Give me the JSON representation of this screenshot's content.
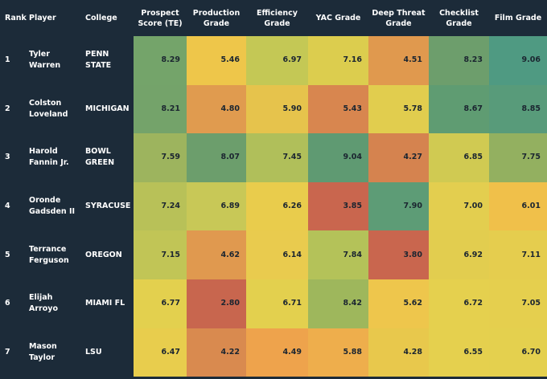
{
  "table": {
    "columns": [
      "Rank",
      "Player",
      "College",
      "Prospect Score (TE)",
      "Production Grade",
      "Efficiency Grade",
      "YAC Grade",
      "Deep Threat Grade",
      "Checklist Grade",
      "Film Grade"
    ],
    "rows": [
      {
        "rank": "1",
        "player": "Tyler Warren",
        "college": "PENN STATE",
        "grades": [
          "8.29",
          "5.46",
          "6.97",
          "7.16",
          "4.51",
          "8.23",
          "9.06"
        ],
        "colors": [
          "#74a46a",
          "#eec64a",
          "#c4c855",
          "#dccd4e",
          "#e0994e",
          "#6d9e6c",
          "#4f9a82"
        ]
      },
      {
        "rank": "2",
        "player": "Colston Loveland",
        "college": "MICHIGAN",
        "grades": [
          "8.21",
          "4.80",
          "5.90",
          "5.43",
          "5.78",
          "8.67",
          "8.85"
        ],
        "colors": [
          "#74a36a",
          "#e09b4f",
          "#e6c34c",
          "#d8864f",
          "#e1cd4e",
          "#5f9c72",
          "#589b7a"
        ]
      },
      {
        "rank": "3",
        "player": "Harold Fannin Jr.",
        "college": "BOWL GREEN",
        "grades": [
          "7.59",
          "8.07",
          "7.45",
          "9.04",
          "4.27",
          "6.85",
          "7.75"
        ],
        "colors": [
          "#9db45e",
          "#6c9e6c",
          "#b0bf5a",
          "#5f9a72",
          "#d5834f",
          "#d0ca52",
          "#93b060"
        ]
      },
      {
        "rank": "4",
        "player": "Oronde Gadsden II",
        "college": "SYRACUSE",
        "grades": [
          "7.24",
          "6.89",
          "6.26",
          "3.85",
          "7.90",
          "7.00",
          "6.01"
        ],
        "colors": [
          "#b8c158",
          "#c8c857",
          "#e9cc4c",
          "#c9664e",
          "#5d9c76",
          "#e3ce4f",
          "#f0c04a"
        ]
      },
      {
        "rank": "5",
        "player": "Terrance Ferguson",
        "college": "OREGON",
        "grades": [
          "7.15",
          "4.62",
          "6.14",
          "7.84",
          "3.80",
          "6.92",
          "7.11"
        ],
        "colors": [
          "#c1c556",
          "#e0994f",
          "#e9cb4e",
          "#b4c259",
          "#c9664e",
          "#e2cd4f",
          "#e5cd4e"
        ]
      },
      {
        "rank": "6",
        "player": "Elijah Arroyo",
        "college": "MIAMI FL",
        "grades": [
          "6.77",
          "2.80",
          "6.71",
          "8.42",
          "5.62",
          "6.72",
          "7.05"
        ],
        "colors": [
          "#e3d04e",
          "#c8664e",
          "#e3d04e",
          "#9eb75c",
          "#eec64c",
          "#e5d04e",
          "#e5cf4e"
        ]
      },
      {
        "rank": "7",
        "player": "Mason Taylor",
        "college": "LSU",
        "grades": [
          "6.47",
          "4.22",
          "4.49",
          "5.88",
          "4.28",
          "6.55",
          "6.70"
        ],
        "colors": [
          "#e8cd4d",
          "#d98a4f",
          "#eea34c",
          "#eeae4c",
          "#e8c84c",
          "#e5d04e",
          "#e4d04e"
        ]
      }
    ]
  }
}
